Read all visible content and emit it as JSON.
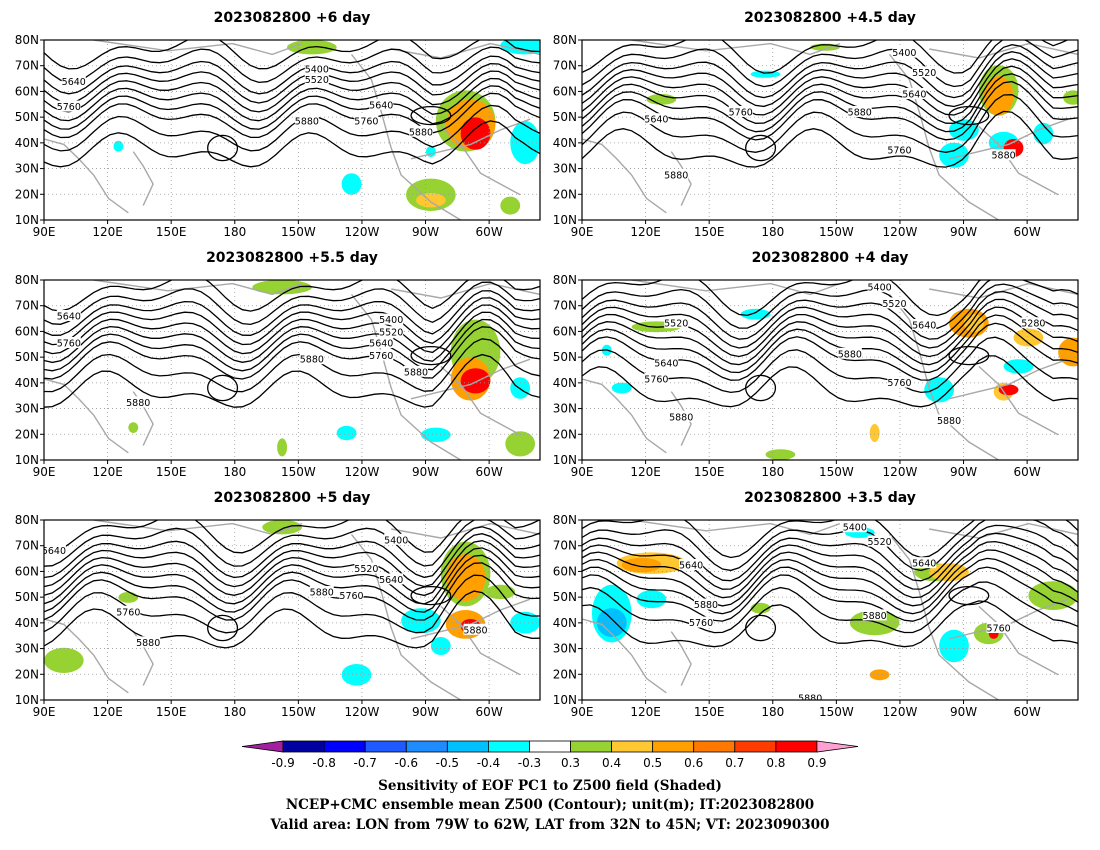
{
  "panels": [
    {
      "title": "2023082800  +6 day",
      "contour_labels": [
        "5640",
        "5760",
        "5400",
        "5520",
        "5640",
        "5760",
        "5880",
        "5880"
      ]
    },
    {
      "title": "2023082800  +4.5 day",
      "contour_labels": [
        "5400",
        "5520",
        "5640",
        "5640",
        "5760",
        "5880",
        "5760",
        "5880",
        "5880"
      ]
    },
    {
      "title": "2023082800  +5.5 day",
      "contour_labels": [
        "5640",
        "5760",
        "5400",
        "5520",
        "5640",
        "5760",
        "5880",
        "5880",
        "5880"
      ]
    },
    {
      "title": "2023082800  +4 day",
      "contour_labels": [
        "5400",
        "5520",
        "5520",
        "5640",
        "5280",
        "5640",
        "5760",
        "5880",
        "5760",
        "5880",
        "5880"
      ]
    },
    {
      "title": "2023082800  +5 day",
      "contour_labels": [
        "5640",
        "5400",
        "5520",
        "5640",
        "5760",
        "5880",
        "5760",
        "5880",
        "5880"
      ]
    },
    {
      "title": "2023082800  +3.5 day",
      "contour_labels": [
        "5400",
        "5520",
        "5640",
        "5640",
        "5760",
        "5880",
        "5760",
        "5880",
        "5880"
      ]
    }
  ],
  "axes": {
    "lat_labels": [
      "80N",
      "70N",
      "60N",
      "50N",
      "40N",
      "30N",
      "20N",
      "10N"
    ],
    "lon_labels": [
      "90E",
      "120E",
      "150E",
      "180",
      "150W",
      "120W",
      "90W",
      "60W"
    ]
  },
  "colorbar": {
    "tick_labels": [
      "-0.9",
      "-0.8",
      "-0.7",
      "-0.6",
      "-0.5",
      "-0.4",
      "-0.3",
      "0.3",
      "0.4",
      "0.5",
      "0.6",
      "0.7",
      "0.8",
      "0.9"
    ],
    "colors": [
      "#a020a0",
      "#0000a0",
      "#0000ff",
      "#1e5aff",
      "#1e8cff",
      "#00c0ff",
      "#00ffff",
      "#ffffff",
      "#96d232",
      "#ffc832",
      "#ffa000",
      "#ff7800",
      "#ff3c00",
      "#ff0000",
      "#ffa0d2"
    ]
  },
  "caption": {
    "line1": "Sensitivity of EOF PC1 to Z500 field (Shaded)",
    "line2": "NCEP+CMC ensemble mean Z500 (Contour); unit(m); IT:2023082800",
    "line3": "Valid area: LON from 79W to 62W, LAT from 32N to 45N; VT: 2023090300"
  }
}
